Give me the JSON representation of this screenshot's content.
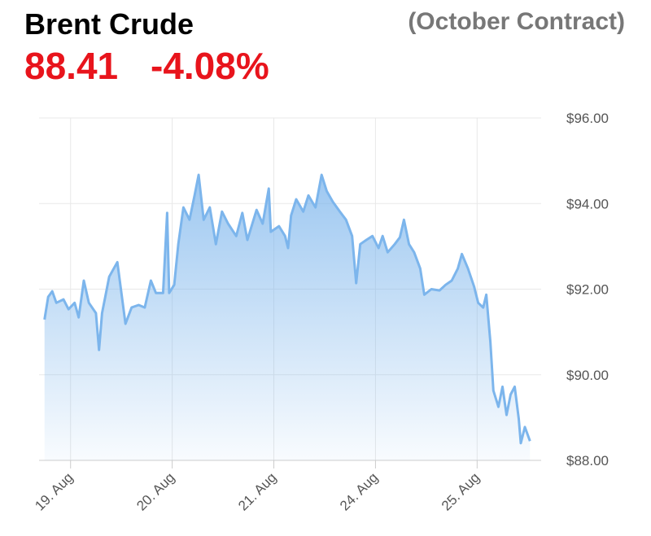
{
  "chart_data": {
    "type": "area",
    "title": "Brent Crude",
    "subtitle": "(October Contract)",
    "annotations": [
      "88.41",
      "-4.08%"
    ],
    "annotation_color": "#e8141c",
    "color": "#7cb5ec",
    "grid": true,
    "xlim": [
      0.69,
      5.63
    ],
    "xticks": [
      {
        "value": 1,
        "label": "19. Aug"
      },
      {
        "value": 2,
        "label": "20. Aug"
      },
      {
        "value": 3,
        "label": "21. Aug"
      },
      {
        "value": 4,
        "label": "24. Aug"
      },
      {
        "value": 5,
        "label": "25. Aug"
      }
    ],
    "ylim": [
      88,
      96
    ],
    "yticks": [
      {
        "value": 88,
        "label": "$88.00"
      },
      {
        "value": 90,
        "label": "$90.00"
      },
      {
        "value": 92,
        "label": "$92.00"
      },
      {
        "value": 94,
        "label": "$94.00"
      },
      {
        "value": 96,
        "label": "$96.00"
      }
    ],
    "x": [
      0.744,
      0.78,
      0.82,
      0.86,
      0.93,
      0.98,
      1.04,
      1.08,
      1.13,
      1.18,
      1.25,
      1.28,
      1.31,
      1.38,
      1.46,
      1.5,
      1.54,
      1.6,
      1.67,
      1.73,
      1.79,
      1.84,
      1.91,
      1.95,
      1.97,
      2.02,
      2.06,
      2.11,
      2.17,
      2.22,
      2.26,
      2.31,
      2.37,
      2.43,
      2.49,
      2.55,
      2.63,
      2.69,
      2.74,
      2.83,
      2.89,
      2.95,
      2.97,
      3.05,
      3.11,
      3.14,
      3.17,
      3.22,
      3.29,
      3.34,
      3.41,
      3.47,
      3.52,
      3.58,
      3.65,
      3.71,
      3.77,
      3.81,
      3.85,
      3.91,
      3.97,
      4.03,
      4.07,
      4.12,
      4.19,
      4.24,
      4.28,
      4.33,
      4.38,
      4.44,
      4.48,
      4.55,
      4.63,
      4.69,
      4.75,
      4.81,
      4.85,
      4.91,
      4.97,
      5.01,
      5.06,
      5.09,
      5.13,
      5.16,
      5.21,
      5.25,
      5.29,
      5.33,
      5.37,
      5.41,
      5.43,
      5.47,
      5.52
    ],
    "values": [
      91.29,
      91.82,
      91.95,
      91.68,
      91.76,
      91.53,
      91.68,
      91.34,
      92.2,
      91.68,
      91.44,
      90.58,
      91.44,
      92.29,
      92.63,
      91.91,
      91.19,
      91.57,
      91.63,
      91.57,
      92.2,
      91.91,
      91.91,
      93.78,
      91.91,
      92.1,
      93.05,
      93.91,
      93.62,
      94.19,
      94.67,
      93.62,
      93.91,
      93.05,
      93.81,
      93.53,
      93.24,
      93.78,
      93.15,
      93.85,
      93.53,
      94.35,
      93.34,
      93.47,
      93.24,
      92.96,
      93.72,
      94.1,
      93.81,
      94.19,
      93.91,
      94.67,
      94.29,
      94.04,
      93.81,
      93.62,
      93.24,
      92.14,
      93.05,
      93.15,
      93.24,
      92.96,
      93.24,
      92.86,
      93.05,
      93.21,
      93.62,
      93.05,
      92.86,
      92.48,
      91.87,
      92.0,
      91.97,
      92.1,
      92.2,
      92.48,
      92.82,
      92.48,
      92.06,
      91.68,
      91.57,
      91.87,
      90.77,
      89.63,
      89.25,
      89.72,
      89.06,
      89.54,
      89.72,
      88.97,
      88.4,
      88.78,
      88.45
    ]
  }
}
